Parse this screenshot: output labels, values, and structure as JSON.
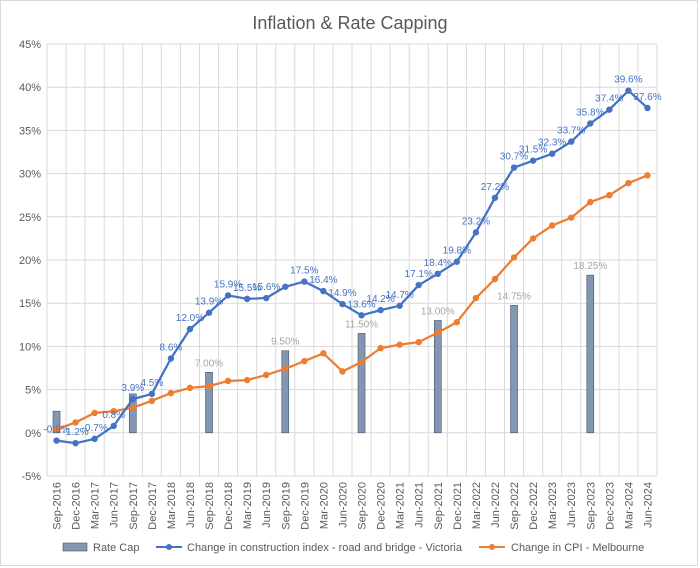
{
  "chart_data": {
    "type": "bar+line",
    "title": "Inflation & Rate Capping",
    "categories": [
      "Sep-2016",
      "Dec-2016",
      "Mar-2017",
      "Jun-2017",
      "Sep-2017",
      "Dec-2017",
      "Mar-2018",
      "Jun-2018",
      "Sep-2018",
      "Dec-2018",
      "Mar-2019",
      "Jun-2019",
      "Sep-2019",
      "Dec-2019",
      "Mar-2020",
      "Jun-2020",
      "Sep-2020",
      "Dec-2020",
      "Mar-2021",
      "Jun-2021",
      "Sep-2021",
      "Dec-2021",
      "Mar-2022",
      "Jun-2022",
      "Sep-2022",
      "Dec-2022",
      "Mar-2023",
      "Jun-2023",
      "Sep-2023",
      "Dec-2023",
      "Mar-2024",
      "Jun-2024"
    ],
    "ylim": [
      -5,
      45
    ],
    "ytick_labels": [
      "-5%",
      "0%",
      "5%",
      "10%",
      "15%",
      "20%",
      "25%",
      "30%",
      "35%",
      "40%",
      "45%"
    ],
    "series": [
      {
        "name": "Rate Cap",
        "kind": "bar",
        "color": "#8497B0",
        "values": [
          2.5,
          null,
          null,
          null,
          4.5,
          null,
          null,
          null,
          7.0,
          null,
          null,
          null,
          9.5,
          null,
          null,
          null,
          11.5,
          null,
          null,
          null,
          13.0,
          null,
          null,
          null,
          14.75,
          null,
          null,
          null,
          18.25,
          null,
          null,
          null
        ],
        "labels": [
          "",
          "",
          "",
          "",
          "",
          "",
          "",
          "",
          "7.00%",
          "",
          "",
          "",
          "9.50%",
          "",
          "",
          "",
          "11.50%",
          "",
          "",
          "",
          "13.00%",
          "",
          "",
          "",
          "14.75%",
          "",
          "",
          "",
          "18.25%",
          "",
          "",
          ""
        ]
      },
      {
        "name": "Change in construction index - road and bridge - Victoria",
        "kind": "line",
        "color": "#4472C4",
        "values": [
          -0.9,
          -1.2,
          -0.7,
          0.8,
          3.9,
          4.5,
          8.6,
          12.0,
          13.9,
          15.9,
          15.5,
          15.6,
          16.9,
          17.5,
          16.4,
          14.9,
          13.6,
          14.2,
          14.7,
          17.1,
          18.4,
          19.8,
          23.2,
          27.2,
          30.7,
          31.5,
          32.3,
          33.7,
          35.8,
          37.4,
          39.6,
          37.6
        ],
        "labels": [
          "-0.9%",
          "-1.2%",
          "-0.7%",
          "0.8%",
          "3.9%",
          "4.5%",
          "8.6%",
          "12.0%",
          "13.9%",
          "15.9%",
          "15.5%",
          "15.6%",
          "",
          "17.5%",
          "16.4%",
          "14.9%",
          "13.6%",
          "14.2%",
          "14.7%",
          "17.1%",
          "18.4%",
          "19.8%",
          "23.2%",
          "27.2%",
          "30.7%",
          "31.5%",
          "32.3%",
          "33.7%",
          "35.8%",
          "37.4%",
          "39.6%",
          "37.6%"
        ]
      },
      {
        "name": "Change in CPI - Melbourne",
        "kind": "line",
        "color": "#ED7D31",
        "values": [
          0.4,
          1.2,
          2.3,
          2.5,
          2.9,
          3.7,
          4.6,
          5.2,
          5.4,
          6.0,
          6.1,
          6.7,
          7.4,
          8.3,
          9.2,
          7.1,
          8.2,
          9.8,
          10.2,
          10.5,
          11.6,
          12.8,
          15.6,
          17.8,
          20.3,
          22.5,
          24.0,
          24.9,
          26.7,
          27.5,
          28.9,
          29.8
        ]
      }
    ]
  }
}
